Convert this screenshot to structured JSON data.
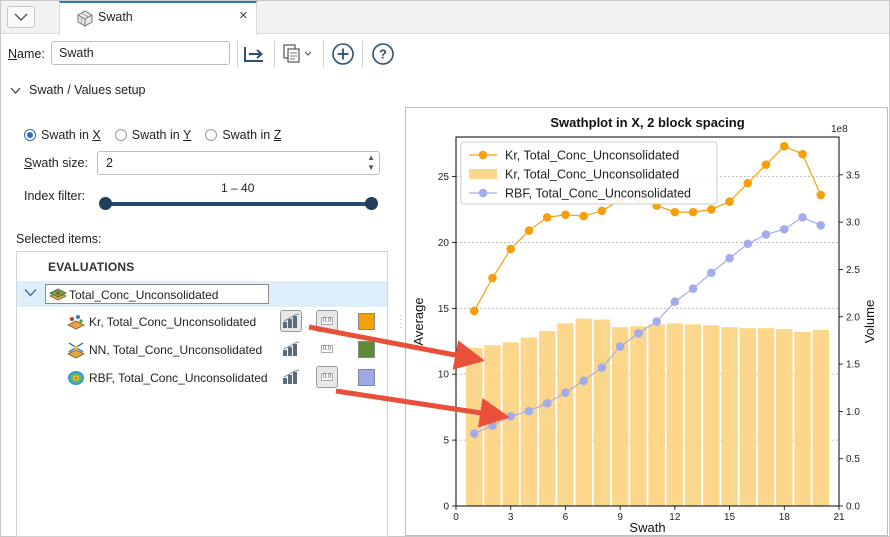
{
  "tab": {
    "label": "Swath",
    "close": "×",
    "icon": "swath-grid-icon"
  },
  "toolbar": {
    "name_label_prefix": "N",
    "name_label_rest": "ame:",
    "name_value": "Swath"
  },
  "section": {
    "title": "Swath / Values setup"
  },
  "radios": [
    {
      "prefix": "Swath in ",
      "axis": "X",
      "selected": true
    },
    {
      "prefix": "Swath in ",
      "axis": "Y",
      "selected": false
    },
    {
      "prefix": "Swath in ",
      "axis": "Z",
      "selected": false
    }
  ],
  "swath_size": {
    "label_prefix": "S",
    "label_rest": "wath size:",
    "value": "2"
  },
  "index_filter": {
    "label": "Index filter:",
    "range": "1 – 40",
    "min": 1,
    "max": 40
  },
  "selected_items": {
    "label": "Selected items:",
    "header": "EVALUATIONS",
    "group": {
      "label": "Total_Conc_Unconsolidated",
      "icon": "block-model-icon"
    },
    "rows": [
      {
        "label": "Kr, Total_Conc_Unconsolidated",
        "icon": "kriging-icon",
        "color": "#f5a00a",
        "bars_on": true,
        "values_on": true,
        "values_text": "0.0"
      },
      {
        "label": "NN, Total_Conc_Unconsolidated",
        "icon": "nearest-neighbour-icon",
        "color": "#5e8a3a",
        "bars_on": false,
        "values_on": false,
        "values_text": "0.0"
      },
      {
        "label": "RBF, Total_Conc_Unconsolidated",
        "icon": "rbf-icon",
        "color": "#9fa8e6",
        "bars_on": false,
        "values_on": true,
        "values_text": "0.0"
      }
    ]
  },
  "chart_data": {
    "type": "line",
    "title": "Swathplot in X, 2 block spacing",
    "xlabel": "Swath",
    "ylabel": "Average",
    "y2label": "Volume",
    "y2_multiplier": "1e8",
    "xlim": [
      0,
      21
    ],
    "ylim": [
      0,
      28
    ],
    "y2lim": [
      0,
      3.9
    ],
    "x_ticks": [
      "0",
      "3",
      "6",
      "9",
      "12",
      "15",
      "18",
      "21"
    ],
    "y_ticks": [
      "0",
      "5",
      "10",
      "15",
      "20",
      "25"
    ],
    "y2_ticks": [
      "0.0",
      "0.5",
      "1.0",
      "1.5",
      "2.0",
      "2.5",
      "3.0",
      "3.5"
    ],
    "grid": true,
    "legend_position": "top-left",
    "x": [
      1,
      2,
      3,
      4,
      5,
      6,
      7,
      8,
      9,
      10,
      11,
      12,
      13,
      14,
      15,
      16,
      17,
      18,
      19,
      20
    ],
    "series": [
      {
        "name": "Kr, Total_Conc_Unconsolidated",
        "kind": "line",
        "axis": "left",
        "color": "#f5a00a",
        "values": [
          14.8,
          17.3,
          19.5,
          20.9,
          21.9,
          22.1,
          22.0,
          22.4,
          23.2,
          23.3,
          22.8,
          22.3,
          22.3,
          22.5,
          23.1,
          24.5,
          25.9,
          27.3,
          26.7,
          23.6
        ]
      },
      {
        "name": "Kr, Total_Conc_Unconsolidated",
        "kind": "bar",
        "axis": "right",
        "color": "#fcd68b",
        "values": [
          1.67,
          1.7,
          1.73,
          1.78,
          1.85,
          1.93,
          1.98,
          1.97,
          1.89,
          1.9,
          1.92,
          1.93,
          1.92,
          1.91,
          1.89,
          1.88,
          1.88,
          1.87,
          1.84,
          1.86
        ]
      },
      {
        "name": "RBF, Total_Conc_Unconsolidated",
        "kind": "line",
        "axis": "left",
        "color": "#a3acea",
        "values": [
          5.5,
          6.1,
          6.8,
          7.2,
          7.8,
          8.6,
          9.5,
          10.5,
          12.1,
          13.1,
          14.0,
          15.5,
          16.5,
          17.7,
          18.8,
          19.9,
          20.6,
          21.0,
          21.9,
          21.3
        ]
      }
    ]
  }
}
